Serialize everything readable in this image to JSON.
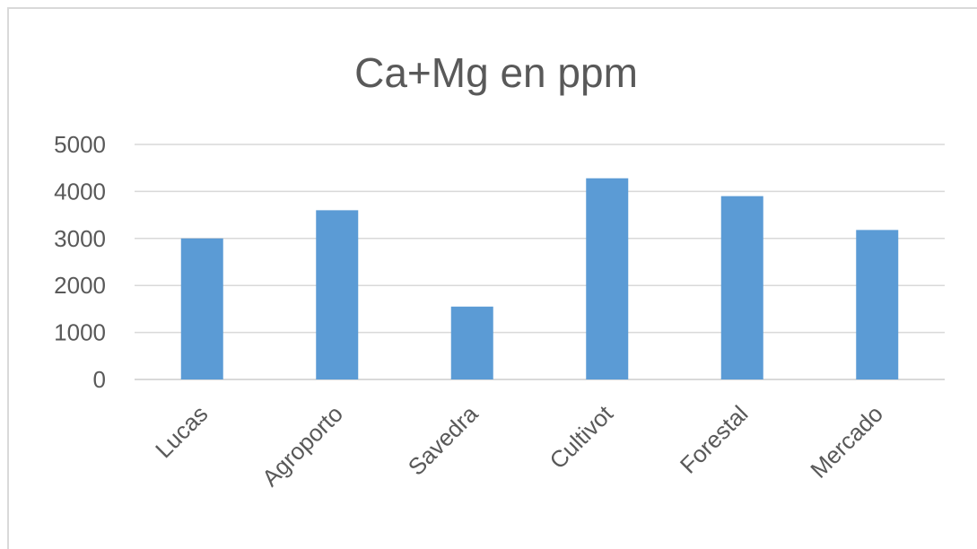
{
  "chart_data": {
    "type": "bar",
    "title": "Ca+Mg en ppm",
    "xlabel": "",
    "ylabel": "",
    "categories": [
      "Lucas",
      "Agroporto",
      "Savedra",
      "Cultivot",
      "Forestal",
      "Mercado"
    ],
    "values": [
      3000,
      3600,
      1550,
      4280,
      3900,
      3180
    ],
    "ylim": [
      0,
      5000
    ],
    "yticks": [
      "0",
      "1000",
      "2000",
      "3000",
      "4000",
      "5000"
    ],
    "grid": true,
    "legend": "none",
    "bar_color": "#5b9bd5",
    "grid_color": "#d9d9d9"
  }
}
